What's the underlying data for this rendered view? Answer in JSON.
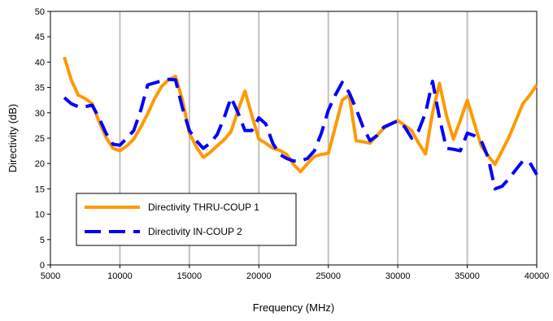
{
  "chart_data": {
    "type": "line",
    "xlabel": "Frequency (MHz)",
    "ylabel": "Directivity (dB)",
    "xlim": [
      5000,
      40000
    ],
    "ylim": [
      0,
      50
    ],
    "xticks": [
      5000,
      10000,
      15000,
      20000,
      25000,
      30000,
      35000,
      40000
    ],
    "yticks": [
      0,
      5,
      10,
      15,
      20,
      25,
      30,
      35,
      40,
      45,
      50
    ],
    "grid": "vertical",
    "legend_position": "lower-left",
    "series": [
      {
        "name": "Directivity THRU-COUP 1",
        "color": "#FF9900",
        "style": "solid",
        "x": [
          6000,
          6500,
          7000,
          7500,
          8000,
          8500,
          9000,
          9500,
          10000,
          10500,
          11000,
          11500,
          12000,
          12500,
          13000,
          13500,
          14000,
          14500,
          15000,
          15500,
          16000,
          16500,
          17000,
          17500,
          18000,
          18500,
          19000,
          19500,
          20000,
          20500,
          21000,
          21500,
          22000,
          22500,
          23000,
          23500,
          24000,
          24500,
          25000,
          25500,
          26000,
          26500,
          27000,
          27500,
          28000,
          28500,
          29000,
          29500,
          30000,
          30500,
          31000,
          31500,
          32000,
          32500,
          33000,
          33500,
          34000,
          34500,
          35000,
          35500,
          36000,
          36500,
          37000,
          37500,
          38000,
          38500,
          39000,
          39500,
          40000
        ],
        "values": [
          41,
          36.5,
          33.5,
          32.8,
          31.8,
          28.3,
          25.2,
          23,
          22.5,
          23.5,
          24.8,
          27.2,
          29.8,
          32.8,
          35.2,
          36.5,
          37.2,
          32.5,
          26,
          23.3,
          21.2,
          22.2,
          23.5,
          24.7,
          26.3,
          30.5,
          34.3,
          29.5,
          24.8,
          24,
          23,
          22.6,
          21.8,
          19.8,
          18.4,
          20,
          21.4,
          21.8,
          22,
          27.2,
          32.5,
          33.5,
          24.5,
          24.3,
          24,
          25.5,
          27,
          27.8,
          28.5,
          27.5,
          26.5,
          24,
          21.9,
          30,
          35.8,
          29.5,
          24.8,
          28.5,
          32.5,
          28,
          23.5,
          21.5,
          19.8,
          22.5,
          25.2,
          28.5,
          31.8,
          33.5,
          35.5
        ]
      },
      {
        "name": "Directivity IN-COUP 2",
        "color": "#0000FF",
        "style": "dashed",
        "x": [
          6000,
          6500,
          7000,
          7500,
          8000,
          8500,
          9000,
          9500,
          10000,
          10500,
          11000,
          11500,
          12000,
          12500,
          13000,
          13500,
          14000,
          14500,
          15000,
          15500,
          16000,
          16500,
          17000,
          17500,
          18000,
          18500,
          19000,
          19500,
          20000,
          20500,
          21000,
          21500,
          22000,
          22500,
          23000,
          23500,
          24000,
          24500,
          25000,
          25500,
          26000,
          26500,
          27000,
          27500,
          28000,
          28500,
          29000,
          29500,
          30000,
          30500,
          31000,
          31500,
          32000,
          32500,
          33000,
          33500,
          34000,
          34500,
          35000,
          35500,
          36000,
          36500,
          37000,
          37500,
          38000,
          38500,
          39000,
          39500,
          40000
        ],
        "values": [
          33,
          31.8,
          31.2,
          31.2,
          31.5,
          29,
          26,
          23.8,
          23.6,
          25,
          26.5,
          30.5,
          35.5,
          35.9,
          36.3,
          36.6,
          36.5,
          31,
          26.5,
          24.5,
          23,
          24,
          25.7,
          29,
          33,
          30,
          26.5,
          26.5,
          29,
          27.8,
          24,
          21.8,
          21,
          20.5,
          20.5,
          21,
          22.5,
          26,
          30.5,
          33.5,
          36,
          34,
          30.8,
          27.2,
          24.5,
          25.5,
          27.2,
          27.8,
          28.4,
          27.2,
          25,
          26.5,
          30,
          36.2,
          29,
          23,
          22.8,
          22.5,
          26,
          25.5,
          24.5,
          21.2,
          15,
          15.5,
          17,
          18.8,
          20.5,
          20.2,
          17.8
        ]
      }
    ]
  }
}
